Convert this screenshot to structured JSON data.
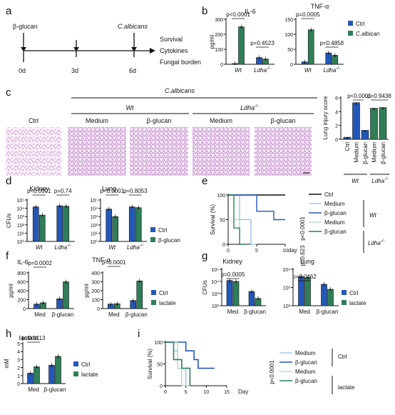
{
  "colors": {
    "ctrl": "#2358b8",
    "treat": "#2f7e58",
    "axis": "#111111",
    "tissue": "#c489cc",
    "tissue_bg": "#f7eef8"
  },
  "panels": {
    "a": {
      "label": "a",
      "timeline": [
        "0d",
        "3d",
        "6d"
      ],
      "top_labels": [
        "β-glucan",
        "C.albicans"
      ],
      "readouts": [
        "Survival",
        "Cytokines",
        "Fungal burden"
      ]
    },
    "b": {
      "label": "b"
    },
    "c": {
      "label": "c",
      "group_header": "C.albicans",
      "sub_wt": "Wt",
      "sub_ldha": "Ldha",
      "sub_ldha_sup": "-/-",
      "images": [
        "Ctrl",
        "Medium",
        "β-glucan",
        "Medium",
        "β-glucan"
      ]
    },
    "d": {
      "label": "d"
    },
    "e": {
      "label": "e"
    },
    "f": {
      "label": "f"
    },
    "g": {
      "label": "g"
    },
    "h": {
      "label": "h"
    },
    "i": {
      "label": "i"
    }
  },
  "chart_data": [
    {
      "id": "b-il6",
      "type": "bar",
      "title": "IL-6",
      "ylabel": "pg/ml",
      "ylim": [
        0,
        300
      ],
      "yticks": [
        0,
        100,
        200,
        300
      ],
      "groups": [
        "Wt",
        "Ldha-/-"
      ],
      "series": [
        {
          "name": "Ctrl",
          "values": [
            5,
            45
          ]
        },
        {
          "name": "C.albican",
          "values": [
            250,
            35
          ]
        }
      ],
      "pvalues": [
        "p<0.0001",
        "p=0.4523"
      ]
    },
    {
      "id": "b-tnf",
      "type": "bar",
      "title": "TNF-α",
      "ylim": [
        0,
        150
      ],
      "yticks": [
        0,
        50,
        100,
        150
      ],
      "groups": [
        "Wt",
        "Ldha-/-"
      ],
      "series": [
        {
          "name": "Ctrl",
          "values": [
            8,
            38
          ]
        },
        {
          "name": "C.albican",
          "values": [
            115,
            30
          ]
        }
      ],
      "pvalues": [
        "p=0.0005",
        "p=0.4858"
      ],
      "legend": [
        "Ctrl",
        "C.albican"
      ]
    },
    {
      "id": "c-score",
      "type": "bar",
      "ylabel": "Lung injury score",
      "ylim": [
        0,
        6
      ],
      "yticks": [
        0,
        2,
        4,
        6
      ],
      "categories": [
        "Ctrl",
        "Medium",
        "β-glucan",
        "Medium",
        "β-glucan"
      ],
      "values": [
        0.3,
        5.3,
        1.3,
        4.5,
        4.6
      ],
      "colors": [
        "ctrl",
        "ctrl",
        "ctrl",
        "treat",
        "treat"
      ],
      "group_labels": [
        "Wt",
        "Ldha-/-"
      ],
      "pvalues": [
        "p<0.0001",
        "p=0.9438"
      ]
    },
    {
      "id": "d-kidney",
      "type": "bar",
      "title": "Kidney",
      "ylabel": "CFUs",
      "scale": "log",
      "ylim": [
        1,
        100000
      ],
      "yticks": [
        "10⁰",
        "10¹",
        "10²",
        "10³",
        "10⁴",
        "10⁵"
      ],
      "groups": [
        "Wt",
        "Ldha-/-"
      ],
      "series": [
        {
          "name": "Ctrl",
          "values": [
            15000,
            20000
          ]
        },
        {
          "name": "β-glucan",
          "values": [
            1500,
            18000
          ]
        }
      ],
      "pvalues": [
        "p<0.0001",
        "p=0.74"
      ]
    },
    {
      "id": "d-lung",
      "type": "bar",
      "title": "Lung",
      "scale": "log",
      "ylim": [
        1,
        100000
      ],
      "yticks": [
        "10⁰",
        "10¹",
        "10²",
        "10³",
        "10⁴",
        "10⁵"
      ],
      "groups": [
        "Wt",
        "Ldha-/-"
      ],
      "series": [
        {
          "name": "Ctrl",
          "values": [
            8000,
            15000
          ]
        },
        {
          "name": "β-glucan",
          "values": [
            1000,
            12000
          ]
        }
      ],
      "pvalues": [
        "p<0.0001",
        "p=0.8053"
      ],
      "legend": [
        "Ctrl",
        "β-glucan"
      ]
    },
    {
      "id": "e-surv",
      "type": "line",
      "ylabel": "Survival (%)",
      "xlabel": "day",
      "xlim": [
        0,
        10
      ],
      "ylim": [
        0,
        100
      ],
      "xticks": [
        0,
        5,
        10
      ],
      "yticks": [
        0,
        50,
        100
      ],
      "series": [
        {
          "name": "Ctrl",
          "style": "ctrl-black",
          "points": [
            [
              0,
              100
            ],
            [
              10,
              100
            ]
          ]
        },
        {
          "name": "Medium",
          "style": "wt-medium",
          "points": [
            [
              0,
              100
            ],
            [
              2,
              100
            ],
            [
              2,
              50
            ],
            [
              4,
              50
            ],
            [
              4,
              0
            ],
            [
              5,
              0
            ]
          ]
        },
        {
          "name": "β-glucan",
          "style": "wt-glucan",
          "points": [
            [
              0,
              100
            ],
            [
              5,
              100
            ],
            [
              5,
              67
            ],
            [
              8,
              67
            ],
            [
              8,
              50
            ],
            [
              10,
              50
            ]
          ]
        },
        {
          "name": "Medium",
          "style": "ldha-medium",
          "points": [
            [
              0,
              100
            ],
            [
              1,
              100
            ],
            [
              1,
              50
            ],
            [
              2,
              50
            ],
            [
              2,
              0
            ]
          ]
        },
        {
          "name": "β-glucan",
          "style": "ldha-glucan",
          "points": [
            [
              0,
              100
            ],
            [
              1,
              100
            ],
            [
              1,
              33
            ],
            [
              2,
              33
            ],
            [
              2,
              0
            ],
            [
              3,
              0
            ]
          ]
        }
      ],
      "legend": [
        "Ctrl",
        "Medium",
        "β-glucan",
        "Medium",
        "β-glucan"
      ],
      "group_labels": [
        "Wt",
        "Ldha-/-"
      ],
      "pvalues": [
        "p<0.0001",
        "p=0.623"
      ]
    },
    {
      "id": "f-il6",
      "type": "bar",
      "title": "IL-6",
      "ylabel": "pg/ml",
      "ylim": [
        0,
        800
      ],
      "yticks": [
        0,
        200,
        400,
        600,
        800
      ],
      "groups": [
        "Med",
        "β-glucan"
      ],
      "series": [
        {
          "name": "Ctrl",
          "values": [
            100,
            220
          ]
        },
        {
          "name": "lactate",
          "values": [
            130,
            600
          ]
        }
      ],
      "pvalues": [
        "p=0.0002"
      ]
    },
    {
      "id": "f-tnf",
      "type": "bar",
      "title": "TNF-α",
      "ylabel": "pg/ml",
      "ylim": [
        0,
        400
      ],
      "yticks": [
        0,
        100,
        200,
        300,
        400
      ],
      "groups": [
        "Med",
        "β-glucan"
      ],
      "series": [
        {
          "name": "Ctrl",
          "values": [
            50,
            90
          ]
        },
        {
          "name": "lactate",
          "values": [
            55,
            310
          ]
        }
      ],
      "pvalues": [
        "p<0.0001"
      ],
      "legend": [
        "Ctrl",
        "lactate"
      ]
    },
    {
      "id": "g-kidney",
      "type": "bar",
      "title": "Kidney",
      "ylabel": "CFUs",
      "scale": "log",
      "ylim": [
        100,
        100000
      ],
      "yticks": [
        "10²",
        "10³",
        "10⁴",
        "10⁵"
      ],
      "groups": [
        "Med",
        "β-glucan"
      ],
      "series": [
        {
          "name": "Ctrl",
          "values": [
            12000,
            1500
          ]
        },
        {
          "name": "lactate",
          "values": [
            10000,
            400
          ]
        }
      ],
      "pvalues": [
        "p=0.0005"
      ]
    },
    {
      "id": "g-lung",
      "type": "bar",
      "title": "Lung",
      "scale": "log",
      "ylim": [
        100,
        10000
      ],
      "yticks": [
        "10²",
        "10³",
        "10⁴"
      ],
      "groups": [
        "Med",
        "β-glucan"
      ],
      "series": [
        {
          "name": "Ctrl",
          "values": [
            4000,
            1500
          ]
        },
        {
          "name": "lactate",
          "values": [
            3500,
            800
          ]
        }
      ],
      "pvalues": [
        "p=0.0462"
      ],
      "legend": [
        "Ctrl",
        "lactate"
      ]
    },
    {
      "id": "h-lact",
      "type": "bar",
      "title": "lactate",
      "ylabel": "mM",
      "ylim": [
        0,
        5
      ],
      "yticks": [
        0,
        1,
        2,
        3,
        4,
        5
      ],
      "groups": [
        "Med",
        "β-glucan"
      ],
      "series": [
        {
          "name": "Ctrl",
          "values": [
            1.3,
            2.3
          ]
        },
        {
          "name": "lactate",
          "values": [
            2.1,
            3.4
          ]
        }
      ],
      "pvalues": [
        "p=0.0113"
      ],
      "legend": [
        "Ctrl",
        "lactate"
      ]
    },
    {
      "id": "i-surv",
      "type": "line",
      "ylabel": "Survival (%)",
      "xlabel": "Day",
      "xlim": [
        0,
        15
      ],
      "ylim": [
        0,
        100
      ],
      "xticks": [
        0,
        5,
        10,
        15
      ],
      "yticks": [
        0,
        50,
        100
      ],
      "series": [
        {
          "name": "Medium",
          "style": "ctrl-medium",
          "points": [
            [
              0,
              100
            ],
            [
              2,
              100
            ],
            [
              2,
              80
            ],
            [
              3,
              80
            ],
            [
              3,
              60
            ],
            [
              4,
              60
            ],
            [
              4,
              40
            ],
            [
              5,
              40
            ],
            [
              5,
              0
            ],
            [
              6,
              0
            ]
          ]
        },
        {
          "name": "β-glucan",
          "style": "ctrl-glucan",
          "points": [
            [
              0,
              100
            ],
            [
              5,
              100
            ],
            [
              5,
              80
            ],
            [
              7,
              80
            ],
            [
              7,
              60
            ],
            [
              8,
              60
            ],
            [
              8,
              40
            ],
            [
              12,
              40
            ]
          ]
        },
        {
          "name": "Medium",
          "style": "lact-medium",
          "points": [
            [
              0,
              100
            ],
            [
              3,
              100
            ],
            [
              3,
              40
            ],
            [
              4,
              40
            ],
            [
              4,
              0
            ],
            [
              5,
              0
            ]
          ]
        },
        {
          "name": "β-glucan",
          "style": "lact-glucan",
          "points": [
            [
              0,
              100
            ],
            [
              2,
              100
            ],
            [
              2,
              60
            ],
            [
              4,
              60
            ],
            [
              4,
              40
            ],
            [
              6,
              40
            ],
            [
              6,
              0
            ]
          ]
        }
      ],
      "legend": [
        "Medium",
        "β-glucan",
        "Medium",
        "β-glucan"
      ],
      "group_labels": [
        "Ctrl",
        "lactate"
      ],
      "pvalues": [
        "p<0.0001"
      ]
    }
  ]
}
